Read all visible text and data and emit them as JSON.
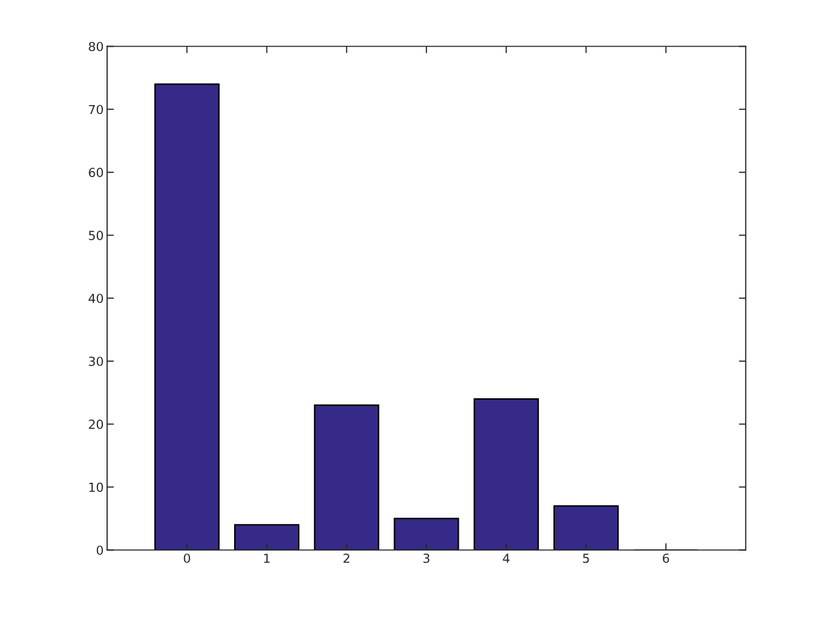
{
  "chart_data": {
    "type": "bar",
    "x": [
      0,
      1,
      2,
      3,
      4,
      5,
      6
    ],
    "values": [
      74,
      4,
      23,
      5,
      24,
      7,
      0
    ],
    "color": "#352a87",
    "xlim": [
      -1,
      7
    ],
    "xticks": [
      0,
      1,
      2,
      3,
      4,
      5,
      6
    ],
    "ylim": [
      0,
      80
    ],
    "yticks": [
      0,
      10,
      20,
      30,
      40,
      50,
      60,
      70,
      80
    ],
    "grid": false,
    "legend": false
  }
}
